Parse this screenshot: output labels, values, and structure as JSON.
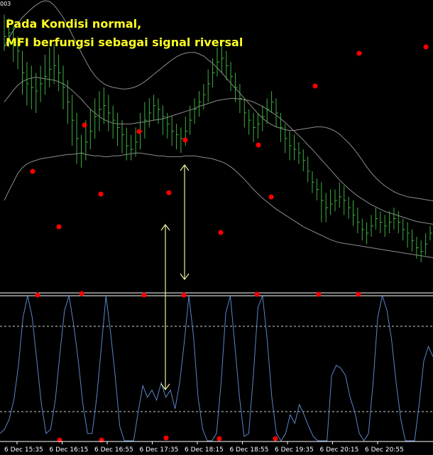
{
  "corner_label": "003",
  "annotation": {
    "line1": "Pada Kondisi normal,",
    "line2": "MFI berfungsi sebagai signal riversal"
  },
  "colors": {
    "background": "#000000",
    "bars": "#3fae3f",
    "bands": "#8c8c8c",
    "mfi_line": "#5a86c8",
    "signal_dots": "#ff0000",
    "arrows": "#f0f0a0",
    "annotation_text": "#ffff22",
    "guide_lines": "#ffffff"
  },
  "chart_data": [
    {
      "type": "line",
      "panel": "price",
      "x_ticks": [
        "6 Dec 15:35",
        "6 Dec 16:15",
        "6 Dec 16:55",
        "6 Dec 17:35",
        "6 Dec 18:15",
        "6 Dec 18:55",
        "6 Dec 19:35",
        "6 Dec 20:15",
        "6 Dec 20:55"
      ],
      "bars": [
        [
          350,
          330,
          380
        ],
        [
          355,
          335,
          375
        ],
        [
          340,
          315,
          365
        ],
        [
          330,
          305,
          350
        ],
        [
          300,
          270,
          330
        ],
        [
          285,
          255,
          315
        ],
        [
          280,
          250,
          310
        ],
        [
          275,
          245,
          300
        ],
        [
          285,
          260,
          310
        ],
        [
          295,
          270,
          325
        ],
        [
          305,
          280,
          335
        ],
        [
          310,
          285,
          340
        ],
        [
          300,
          275,
          325
        ],
        [
          280,
          250,
          310
        ],
        [
          260,
          230,
          290
        ],
        [
          235,
          200,
          270
        ],
        [
          210,
          175,
          245
        ],
        [
          190,
          170,
          215
        ],
        [
          205,
          180,
          235
        ],
        [
          220,
          195,
          250
        ],
        [
          240,
          210,
          265
        ],
        [
          250,
          220,
          275
        ],
        [
          255,
          230,
          280
        ],
        [
          245,
          220,
          270
        ],
        [
          235,
          210,
          255
        ],
        [
          225,
          200,
          245
        ],
        [
          215,
          190,
          235
        ],
        [
          200,
          180,
          225
        ],
        [
          195,
          180,
          215
        ],
        [
          205,
          185,
          225
        ],
        [
          220,
          195,
          245
        ],
        [
          235,
          210,
          260
        ],
        [
          245,
          225,
          265
        ],
        [
          255,
          235,
          270
        ],
        [
          250,
          230,
          265
        ],
        [
          240,
          215,
          255
        ],
        [
          230,
          210,
          245
        ],
        [
          220,
          200,
          240
        ],
        [
          215,
          195,
          230
        ],
        [
          210,
          190,
          225
        ],
        [
          220,
          200,
          240
        ],
        [
          235,
          215,
          255
        ],
        [
          250,
          230,
          265
        ],
        [
          260,
          240,
          275
        ],
        [
          270,
          250,
          285
        ],
        [
          285,
          260,
          305
        ],
        [
          300,
          280,
          320
        ],
        [
          315,
          295,
          335
        ],
        [
          320,
          300,
          345
        ],
        [
          310,
          290,
          330
        ],
        [
          295,
          275,
          315
        ],
        [
          280,
          260,
          300
        ],
        [
          265,
          245,
          285
        ],
        [
          245,
          225,
          265
        ],
        [
          235,
          215,
          250
        ],
        [
          225,
          205,
          245
        ],
        [
          230,
          210,
          245
        ],
        [
          240,
          220,
          255
        ],
        [
          250,
          230,
          265
        ],
        [
          260,
          245,
          275
        ],
        [
          245,
          225,
          265
        ],
        [
          225,
          205,
          245
        ],
        [
          210,
          190,
          230
        ],
        [
          200,
          180,
          220
        ],
        [
          195,
          180,
          215
        ],
        [
          190,
          175,
          205
        ],
        [
          180,
          165,
          195
        ],
        [
          165,
          150,
          185
        ],
        [
          150,
          135,
          165
        ],
        [
          140,
          125,
          155
        ],
        [
          125,
          95,
          150
        ],
        [
          115,
          95,
          135
        ],
        [
          120,
          105,
          140
        ],
        [
          125,
          110,
          140
        ],
        [
          130,
          115,
          150
        ],
        [
          125,
          105,
          145
        ],
        [
          115,
          100,
          130
        ],
        [
          105,
          90,
          125
        ],
        [
          95,
          80,
          115
        ],
        [
          85,
          70,
          100
        ],
        [
          80,
          65,
          95
        ],
        [
          90,
          75,
          105
        ],
        [
          100,
          85,
          115
        ],
        [
          95,
          80,
          110
        ],
        [
          90,
          75,
          105
        ],
        [
          95,
          80,
          110
        ],
        [
          100,
          85,
          115
        ],
        [
          95,
          80,
          110
        ],
        [
          85,
          70,
          100
        ],
        [
          80,
          60,
          95
        ],
        [
          70,
          55,
          85
        ],
        [
          60,
          45,
          75
        ],
        [
          55,
          40,
          70
        ],
        [
          65,
          50,
          80
        ],
        [
          80,
          70,
          90
        ]
      ],
      "upper_band": [
        125,
        138,
        150,
        162,
        170,
        175,
        178,
        180,
        182,
        183,
        184,
        185,
        186,
        187,
        188,
        188,
        189,
        190,
        188,
        187,
        186,
        186,
        185,
        185,
        186,
        186,
        187,
        188,
        189,
        190,
        190,
        189,
        188,
        187,
        186,
        186,
        185,
        185,
        185,
        185,
        186,
        186,
        186,
        185,
        184,
        183,
        182,
        180,
        178,
        175,
        171,
        166,
        160,
        154,
        147,
        140,
        134,
        128,
        123,
        118,
        113,
        109,
        105,
        101,
        97,
        93,
        89,
        86,
        83,
        80,
        77,
        74,
        71,
        69,
        67,
        66,
        65,
        64,
        63,
        62,
        61,
        60,
        59,
        58,
        57,
        56,
        55,
        54,
        53,
        52,
        51,
        50,
        49,
        48,
        47,
        46
      ],
      "middle_band": [
        260,
        268,
        276,
        283,
        288,
        291,
        293,
        294,
        293,
        292,
        291,
        290,
        288,
        285,
        281,
        276,
        270,
        264,
        257,
        250,
        245,
        240,
        236,
        233,
        231,
        230,
        230,
        230,
        230,
        231,
        232,
        233,
        234,
        235,
        236,
        237,
        239,
        241,
        243,
        245,
        247,
        249,
        251,
        254,
        256,
        258,
        260,
        262,
        263,
        264,
        265,
        265,
        264,
        263,
        262,
        260,
        257,
        254,
        250,
        246,
        242,
        237,
        232,
        226,
        220,
        214,
        208,
        201,
        195,
        188,
        181,
        174,
        167,
        160,
        153,
        147,
        141,
        136,
        131,
        127,
        123,
        119,
        116,
        113,
        110,
        108,
        106,
        104,
        102,
        100,
        98,
        96,
        95,
        94,
        93,
        92
      ],
      "lower_band": [
        335,
        348,
        358,
        368,
        376,
        382,
        388,
        393,
        397,
        399,
        398,
        393,
        385,
        376,
        365,
        352,
        340,
        328,
        316,
        305,
        296,
        290,
        285,
        282,
        280,
        279,
        278,
        278,
        279,
        281,
        284,
        288,
        293,
        298,
        303,
        308,
        313,
        318,
        322,
        325,
        327,
        328,
        328,
        326,
        323,
        318,
        313,
        307,
        300,
        293,
        286,
        279,
        272,
        265,
        258,
        251,
        244,
        238,
        233,
        229,
        226,
        224,
        222,
        221,
        221,
        222,
        223,
        224,
        225,
        226,
        226,
        225,
        223,
        220,
        216,
        210,
        204,
        197,
        189,
        180,
        171,
        163,
        156,
        150,
        145,
        141,
        137,
        134,
        132,
        130,
        129,
        128,
        127,
        126,
        125,
        124
      ],
      "signal_dots": [
        [
          46,
          241
        ],
        [
          83,
          319
        ],
        [
          119,
          176
        ],
        [
          142,
          273
        ],
        [
          196,
          185
        ],
        [
          238,
          271
        ],
        [
          261,
          197
        ],
        [
          311,
          327
        ],
        [
          364,
          204
        ],
        [
          382,
          277
        ],
        [
          444,
          121
        ],
        [
          506,
          75
        ],
        [
          600,
          66
        ]
      ]
    },
    {
      "type": "line",
      "panel": "mfi",
      "ylim": [
        0,
        100
      ],
      "levels": [
        100,
        80,
        20,
        0
      ],
      "values": [
        5,
        8,
        15,
        28,
        52,
        85,
        100,
        85,
        55,
        25,
        5,
        8,
        28,
        60,
        90,
        100,
        80,
        55,
        25,
        5,
        5,
        30,
        65,
        100,
        75,
        45,
        10,
        0,
        0,
        0,
        20,
        38,
        30,
        35,
        28,
        40,
        30,
        35,
        22,
        40,
        68,
        100,
        72,
        30,
        8,
        0,
        0,
        5,
        40,
        88,
        100,
        65,
        30,
        3,
        5,
        45,
        92,
        100,
        70,
        30,
        5,
        0,
        5,
        18,
        12,
        25,
        18,
        10,
        3,
        0,
        0,
        0,
        45,
        52,
        50,
        45,
        30,
        20,
        5,
        0,
        5,
        40,
        85,
        100,
        90,
        70,
        40,
        15,
        0,
        0,
        0,
        25,
        55,
        65,
        58
      ],
      "signal_dots_top": [
        [
          53,
          415
        ],
        [
          115,
          413
        ],
        [
          203,
          415
        ],
        [
          259,
          415
        ],
        [
          362,
          414
        ],
        [
          449,
          414
        ],
        [
          505,
          414
        ]
      ],
      "signal_dots_bottom": [
        [
          84,
          619
        ],
        [
          143,
          619
        ],
        [
          234,
          616
        ],
        [
          309,
          617
        ],
        [
          388,
          617
        ]
      ]
    }
  ]
}
